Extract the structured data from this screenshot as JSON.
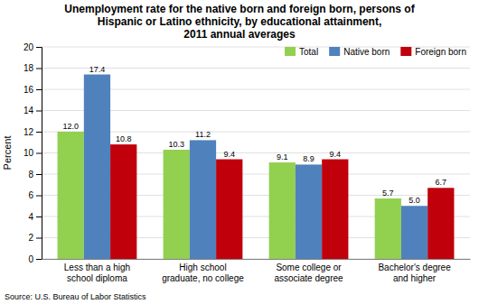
{
  "chart_data": {
    "type": "bar",
    "title": "Unemployment rate for the native born and foreign born, persons of\nHispanic or Latino ethnicity, by educational attainment,\n2011 annual averages",
    "categories": [
      "Less than a high\nschool diploma",
      "High school\ngraduate, no college",
      "Some college or\nassociate degree",
      "Bachelor's degree\nand higher"
    ],
    "series": [
      {
        "name": "Total",
        "color": "#92d050",
        "values": [
          12.0,
          10.3,
          9.1,
          5.7
        ],
        "value_labels": [
          "12.0",
          "10.3",
          "9.1",
          "5.7"
        ]
      },
      {
        "name": "Native born",
        "color": "#4f81bd",
        "values": [
          17.4,
          11.2,
          8.9,
          5.0
        ],
        "value_labels": [
          "17.4",
          "11.2",
          "8.9",
          "5.0"
        ]
      },
      {
        "name": "Foreign born",
        "color": "#c0000b",
        "values": [
          10.8,
          9.4,
          9.4,
          6.7
        ],
        "value_labels": [
          "10.8",
          "9.4",
          "9.4",
          "6.7"
        ]
      }
    ],
    "ylabel": "Percent",
    "ylim": [
      0,
      20
    ],
    "yticks": [
      0,
      2,
      4,
      6,
      8,
      10,
      12,
      14,
      16,
      18,
      20
    ],
    "grid": true,
    "legend": "upper right",
    "data_labels": true,
    "annotations": [
      "Source: U.S. Bureau of Labor Statistics"
    ]
  }
}
